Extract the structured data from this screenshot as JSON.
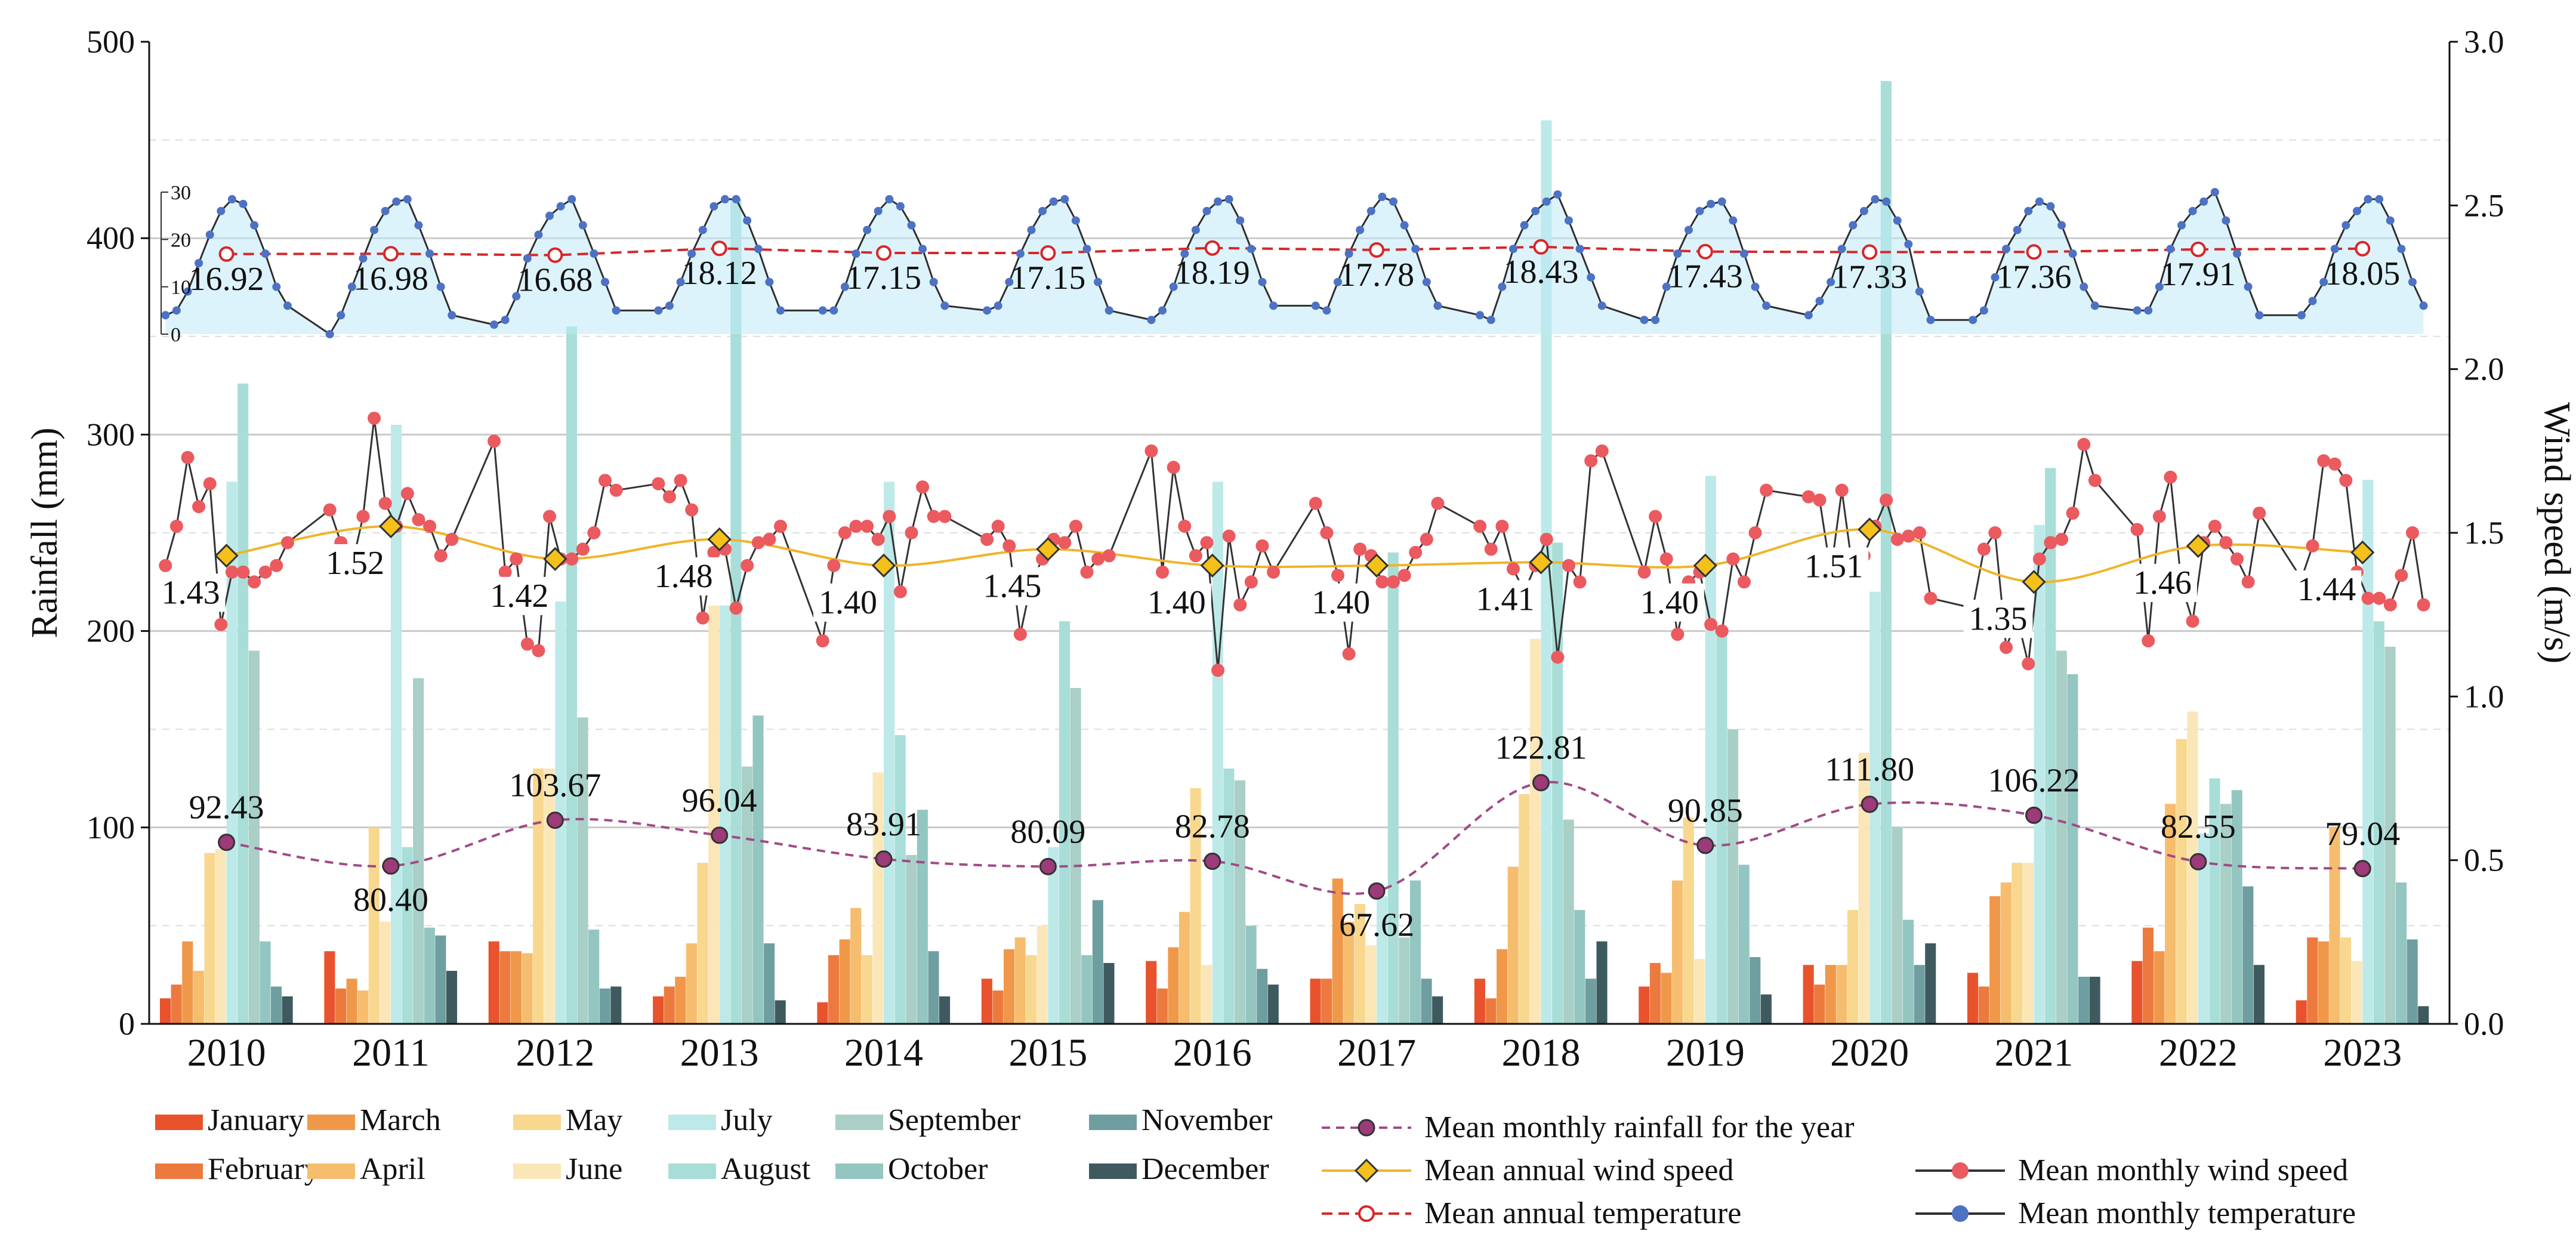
{
  "chart_data": {
    "type": "bar",
    "years": [
      "2010",
      "2011",
      "2012",
      "2013",
      "2014",
      "2015",
      "2016",
      "2017",
      "2018",
      "2019",
      "2020",
      "2021",
      "2022",
      "2023"
    ],
    "months": [
      "January",
      "February",
      "March",
      "April",
      "May",
      "June",
      "July",
      "August",
      "September",
      "October",
      "November",
      "December"
    ],
    "month_colors": [
      "#e8532d",
      "#ec7a3e",
      "#f0984a",
      "#f6bd6e",
      "#f8d78f",
      "#fbe6b8",
      "#bde9e9",
      "#a8ded7",
      "#a9cfc7",
      "#93c6c1",
      "#6f9ea0",
      "#3f5a5f"
    ],
    "monthly_rainfall": [
      [
        13,
        20,
        42,
        27,
        87,
        89,
        276,
        326,
        190,
        42,
        19,
        14
      ],
      [
        37,
        18,
        23,
        17,
        100,
        52,
        305,
        90,
        176,
        49,
        45,
        27
      ],
      [
        42,
        37,
        37,
        36,
        130,
        130,
        215,
        355,
        156,
        48,
        18,
        19
      ],
      [
        14,
        19,
        24,
        41,
        82,
        213,
        213,
        420,
        131,
        157,
        41,
        12
      ],
      [
        11,
        35,
        43,
        59,
        35,
        128,
        276,
        147,
        86,
        109,
        37,
        14
      ],
      [
        23,
        17,
        38,
        44,
        35,
        50,
        90,
        205,
        171,
        35,
        63,
        31
      ],
      [
        32,
        18,
        39,
        57,
        120,
        30,
        276,
        130,
        124,
        50,
        28,
        20
      ],
      [
        23,
        23,
        74,
        52,
        61,
        40,
        65,
        240,
        44,
        73,
        23,
        14
      ],
      [
        23,
        13,
        38,
        80,
        117,
        196,
        460,
        245,
        104,
        58,
        23,
        42
      ],
      [
        19,
        31,
        26,
        73,
        105,
        33,
        279,
        200,
        150,
        81,
        34,
        15
      ],
      [
        30,
        20,
        30,
        30,
        58,
        138,
        220,
        480,
        100,
        53,
        30,
        41
      ],
      [
        26,
        19,
        65,
        72,
        82,
        82,
        254,
        283,
        190,
        178,
        24,
        24
      ],
      [
        32,
        49,
        37,
        112,
        145,
        159,
        97,
        125,
        112,
        119,
        70,
        30
      ],
      [
        12,
        44,
        42,
        100,
        44,
        32,
        277,
        205,
        192,
        72,
        43,
        9
      ]
    ],
    "mean_monthly_rainfall": [
      92.43,
      80.4,
      103.67,
      96.04,
      83.91,
      80.09,
      82.78,
      67.62,
      122.81,
      90.85,
      111.8,
      106.22,
      82.55,
      79.04
    ],
    "mean_monthly_rainfall_labels": [
      "92.43",
      "80.40",
      "103.67",
      "96.04",
      "83.91",
      "80.09",
      "82.78",
      "67.62",
      "122.81",
      "90.85",
      "111.80",
      "106.22",
      "82.55",
      "79.04"
    ],
    "mean_annual_wind_speed": [
      1.43,
      1.52,
      1.42,
      1.48,
      1.4,
      1.45,
      1.4,
      1.4,
      1.41,
      1.4,
      1.51,
      1.35,
      1.46,
      1.44
    ],
    "mean_annual_wind_speed_labels": [
      "1.43",
      "1.52",
      "1.42",
      "1.48",
      "1.40",
      "1.45",
      "1.40",
      "1.40",
      "1.41",
      "1.40",
      "1.51",
      "1.35",
      "1.46",
      "1.44"
    ],
    "monthly_wind_speed": [
      [
        1.4,
        1.52,
        1.73,
        1.58,
        1.65,
        1.22,
        1.38,
        1.38,
        1.35,
        1.38,
        1.4,
        1.47
      ],
      [
        1.57,
        1.47,
        1.4,
        1.55,
        1.85,
        1.59,
        1.52,
        1.62,
        1.54,
        1.52,
        1.43,
        1.48
      ],
      [
        1.78,
        1.38,
        1.42,
        1.16,
        1.14,
        1.55,
        1.42,
        1.42,
        1.45,
        1.5,
        1.66,
        1.63
      ],
      [
        1.65,
        1.61,
        1.66,
        1.57,
        1.24,
        1.44,
        1.45,
        1.27,
        1.4,
        1.47,
        1.48,
        1.52
      ],
      [
        1.17,
        1.4,
        1.5,
        1.52,
        1.52,
        1.48,
        1.55,
        1.32,
        1.5,
        1.64,
        1.55,
        1.55
      ],
      [
        1.48,
        1.52,
        1.46,
        1.19,
        1.35,
        1.42,
        1.48,
        1.47,
        1.52,
        1.38,
        1.42,
        1.43
      ],
      [
        1.75,
        1.38,
        1.7,
        1.52,
        1.43,
        1.47,
        1.08,
        1.49,
        1.28,
        1.35,
        1.46,
        1.38
      ],
      [
        1.59,
        1.5,
        1.37,
        1.13,
        1.45,
        1.43,
        1.35,
        1.35,
        1.37,
        1.44,
        1.48,
        1.59
      ],
      [
        1.52,
        1.45,
        1.52,
        1.39,
        1.32,
        1.4,
        1.48,
        1.12,
        1.4,
        1.35,
        1.72,
        1.75
      ],
      [
        1.38,
        1.55,
        1.42,
        1.19,
        1.35,
        1.38,
        1.22,
        1.2,
        1.42,
        1.35,
        1.5,
        1.63
      ],
      [
        1.61,
        1.6,
        1.38,
        1.63,
        1.38,
        1.43,
        1.52,
        1.6,
        1.48,
        1.49,
        1.5,
        1.3
      ],
      [
        1.27,
        1.45,
        1.5,
        1.15,
        1.24,
        1.1,
        1.42,
        1.47,
        1.48,
        1.56,
        1.77,
        1.66
      ],
      [
        1.51,
        1.17,
        1.55,
        1.67,
        1.34,
        1.23,
        1.47,
        1.52,
        1.47,
        1.42,
        1.35,
        1.56
      ],
      [
        1.36,
        1.46,
        1.72,
        1.71,
        1.66,
        1.38,
        1.3,
        1.3,
        1.28,
        1.37,
        1.5,
        1.28
      ]
    ],
    "mean_annual_temperature": [
      16.92,
      16.98,
      16.68,
      18.12,
      17.15,
      17.15,
      18.19,
      17.78,
      18.43,
      17.43,
      17.33,
      17.36,
      17.91,
      18.05
    ],
    "mean_annual_temperature_labels": [
      "16.92",
      "16.98",
      "16.68",
      "18.12",
      "17.15",
      "17.15",
      "18.19",
      "17.78",
      "18.43",
      "17.43",
      "17.33",
      "17.36",
      "17.91",
      "18.05"
    ],
    "monthly_temperature": [
      [
        4,
        5,
        9,
        15,
        21,
        26,
        28.5,
        27.5,
        23,
        17,
        10,
        6
      ],
      [
        0,
        4,
        10,
        16,
        22,
        26,
        28,
        28.5,
        23,
        17,
        10,
        4
      ],
      [
        2,
        3,
        8,
        16,
        21,
        25,
        27,
        28.5,
        23,
        17,
        11,
        5
      ],
      [
        5,
        6,
        11,
        17,
        22,
        27,
        28.5,
        28.5,
        24,
        18,
        11,
        5
      ],
      [
        5,
        5,
        10,
        17,
        22,
        26,
        28.5,
        27,
        23,
        18,
        11,
        6
      ],
      [
        5,
        6,
        11,
        17,
        22,
        26,
        28,
        28.5,
        24,
        18,
        11,
        5
      ],
      [
        3,
        5,
        10,
        17,
        22,
        26,
        28,
        28.5,
        24,
        18,
        11,
        6
      ],
      [
        6,
        5,
        11,
        17,
        22,
        26,
        29,
        28,
        23,
        18,
        11,
        6
      ],
      [
        4,
        3,
        10,
        18,
        23,
        26,
        28,
        29.5,
        24,
        18,
        12,
        6
      ],
      [
        3,
        3,
        10,
        17,
        22,
        26,
        27.5,
        28,
        24,
        17,
        10,
        6
      ],
      [
        4,
        7,
        11,
        18,
        23,
        26,
        28.5,
        28,
        24,
        19,
        9,
        3
      ],
      [
        3,
        5,
        12,
        18,
        22,
        26,
        28,
        27,
        23,
        17,
        10,
        6
      ],
      [
        5,
        5,
        10,
        18,
        23,
        26,
        28,
        30,
        24,
        17,
        10,
        4
      ],
      [
        4,
        7,
        11,
        18,
        23,
        26,
        28.5,
        28.5,
        24,
        18,
        11,
        6
      ]
    ],
    "y_left": {
      "label": "Rainfall (mm)",
      "min": 0,
      "max": 500,
      "ticks": [
        "0",
        "100",
        "200",
        "300",
        "400",
        "500"
      ]
    },
    "y_right": {
      "label": "Wind speed (m/s)",
      "min": 0,
      "max": 3,
      "ticks": [
        "0.0",
        "0.5",
        "1.0",
        "1.5",
        "2.0",
        "2.5",
        "3.0"
      ]
    },
    "temp_axis": {
      "min": 0,
      "max": 30,
      "ticks": [
        "0",
        "10",
        "20",
        "30"
      ]
    },
    "grid": true
  },
  "legend": {
    "months": [
      "January",
      "February",
      "March",
      "April",
      "May",
      "June",
      "July",
      "August",
      "September",
      "October",
      "November",
      "December"
    ],
    "mean_monthly_rainfall": "Mean monthly rainfall for the year",
    "mean_annual_wind_speed": "Mean annual wind speed",
    "mean_annual_temperature": "Mean annual temperature",
    "mean_monthly_wind_speed": "Mean monthly wind speed",
    "mean_monthly_temperature": "Mean monthly temperature"
  },
  "colors": {
    "rain_line": "#a04a87",
    "rain_marker": "#9c3a7a",
    "wind_annual_line": "#f0b429",
    "wind_annual_marker": "#f4c11b",
    "wind_monthly_line": "#333333",
    "wind_monthly_marker": "#ea5a5f",
    "temp_annual": "#d62728",
    "temp_monthly_line": "#2e2e2e",
    "temp_monthly_marker": "#4d72c4",
    "temp_fill": "#bfe9f7"
  }
}
